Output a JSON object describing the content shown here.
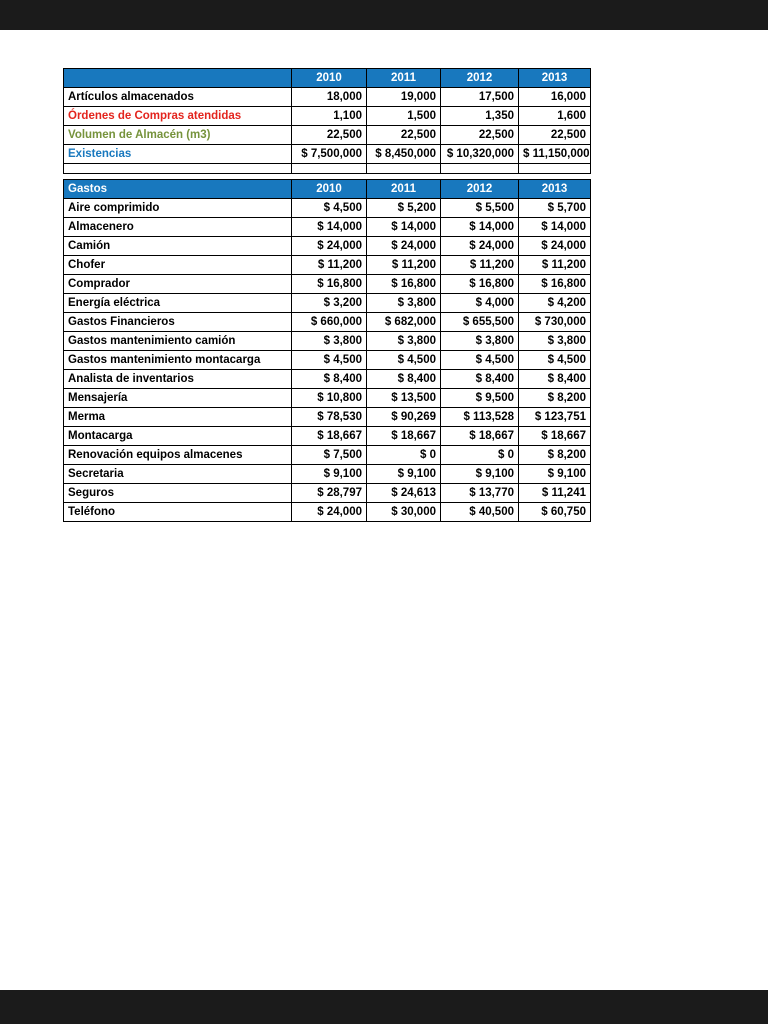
{
  "colors": {
    "bar-bg": "#1b1b1b",
    "header-bg": "#1878be",
    "header-text": "#ffffff",
    "grid": "#000000",
    "row-red": "#e3241d",
    "row-green": "#76933c",
    "row-blue": "#1878be"
  },
  "table1": {
    "header": [
      "",
      "2010",
      "2011",
      "2012",
      "2013"
    ],
    "rows": [
      {
        "label": "Artículos almacenados",
        "color": "black",
        "values": [
          "18,000",
          "19,000",
          "17,500",
          "16,000"
        ]
      },
      {
        "label": "Órdenes de Compras atendidas",
        "color": "red",
        "values": [
          "1,100",
          "1,500",
          "1,350",
          "1,600"
        ]
      },
      {
        "label": "Volumen de Almacén (m3)",
        "color": "green",
        "values": [
          "22,500",
          "22,500",
          "22,500",
          "22,500"
        ]
      },
      {
        "label": "Existencias",
        "color": "blue",
        "values": [
          "$ 7,500,000",
          "$ 8,450,000",
          "$ 10,320,000",
          "$ 11,150,000"
        ]
      }
    ]
  },
  "table2": {
    "header": [
      "Gastos",
      "2010",
      "2011",
      "2012",
      "2013"
    ],
    "rows": [
      {
        "label": "Aire comprimido",
        "color": "black",
        "values": [
          "$ 4,500",
          "$ 5,200",
          "$ 5,500",
          "$ 5,700"
        ]
      },
      {
        "label": "Almacenero",
        "color": "black",
        "values": [
          "$ 14,000",
          "$ 14,000",
          "$ 14,000",
          "$ 14,000"
        ]
      },
      {
        "label": "Camión",
        "color": "black",
        "values": [
          "$ 24,000",
          "$ 24,000",
          "$ 24,000",
          "$ 24,000"
        ]
      },
      {
        "label": "Chofer",
        "color": "black",
        "values": [
          "$ 11,200",
          "$ 11,200",
          "$ 11,200",
          "$ 11,200"
        ]
      },
      {
        "label": "Comprador",
        "color": "black",
        "values": [
          "$ 16,800",
          "$ 16,800",
          "$ 16,800",
          "$ 16,800"
        ]
      },
      {
        "label": "Energía eléctrica",
        "color": "black",
        "values": [
          "$ 3,200",
          "$ 3,800",
          "$ 4,000",
          "$ 4,200"
        ]
      },
      {
        "label": "Gastos Financieros",
        "color": "black",
        "values": [
          "$ 660,000",
          "$ 682,000",
          "$ 655,500",
          "$ 730,000"
        ]
      },
      {
        "label": "Gastos mantenimiento camión",
        "color": "black",
        "values": [
          "$ 3,800",
          "$ 3,800",
          "$ 3,800",
          "$ 3,800"
        ]
      },
      {
        "label": "Gastos mantenimiento montacarga",
        "color": "black",
        "values": [
          "$ 4,500",
          "$ 4,500",
          "$ 4,500",
          "$ 4,500"
        ]
      },
      {
        "label": "Analista de inventarios",
        "color": "black",
        "values": [
          "$ 8,400",
          "$ 8,400",
          "$ 8,400",
          "$ 8,400"
        ]
      },
      {
        "label": "Mensajería",
        "color": "black",
        "values": [
          "$ 10,800",
          "$ 13,500",
          "$ 9,500",
          "$ 8,200"
        ]
      },
      {
        "label": "Merma",
        "color": "black",
        "values": [
          "$ 78,530",
          "$ 90,269",
          "$ 113,528",
          "$ 123,751"
        ]
      },
      {
        "label": "Montacarga",
        "color": "black",
        "values": [
          "$ 18,667",
          "$ 18,667",
          "$ 18,667",
          "$ 18,667"
        ]
      },
      {
        "label": "Renovación equipos almacenes",
        "color": "black",
        "values": [
          "$ 7,500",
          "$ 0",
          "$ 0",
          "$ 8,200"
        ]
      },
      {
        "label": "Secretaria",
        "color": "black",
        "values": [
          "$ 9,100",
          "$ 9,100",
          "$ 9,100",
          "$ 9,100"
        ]
      },
      {
        "label": "Seguros",
        "color": "black",
        "values": [
          "$ 28,797",
          "$ 24,613",
          "$ 13,770",
          "$ 11,241"
        ]
      },
      {
        "label": "Teléfono",
        "color": "black",
        "values": [
          "$ 24,000",
          "$ 30,000",
          "$ 40,500",
          "$ 60,750"
        ]
      }
    ]
  }
}
